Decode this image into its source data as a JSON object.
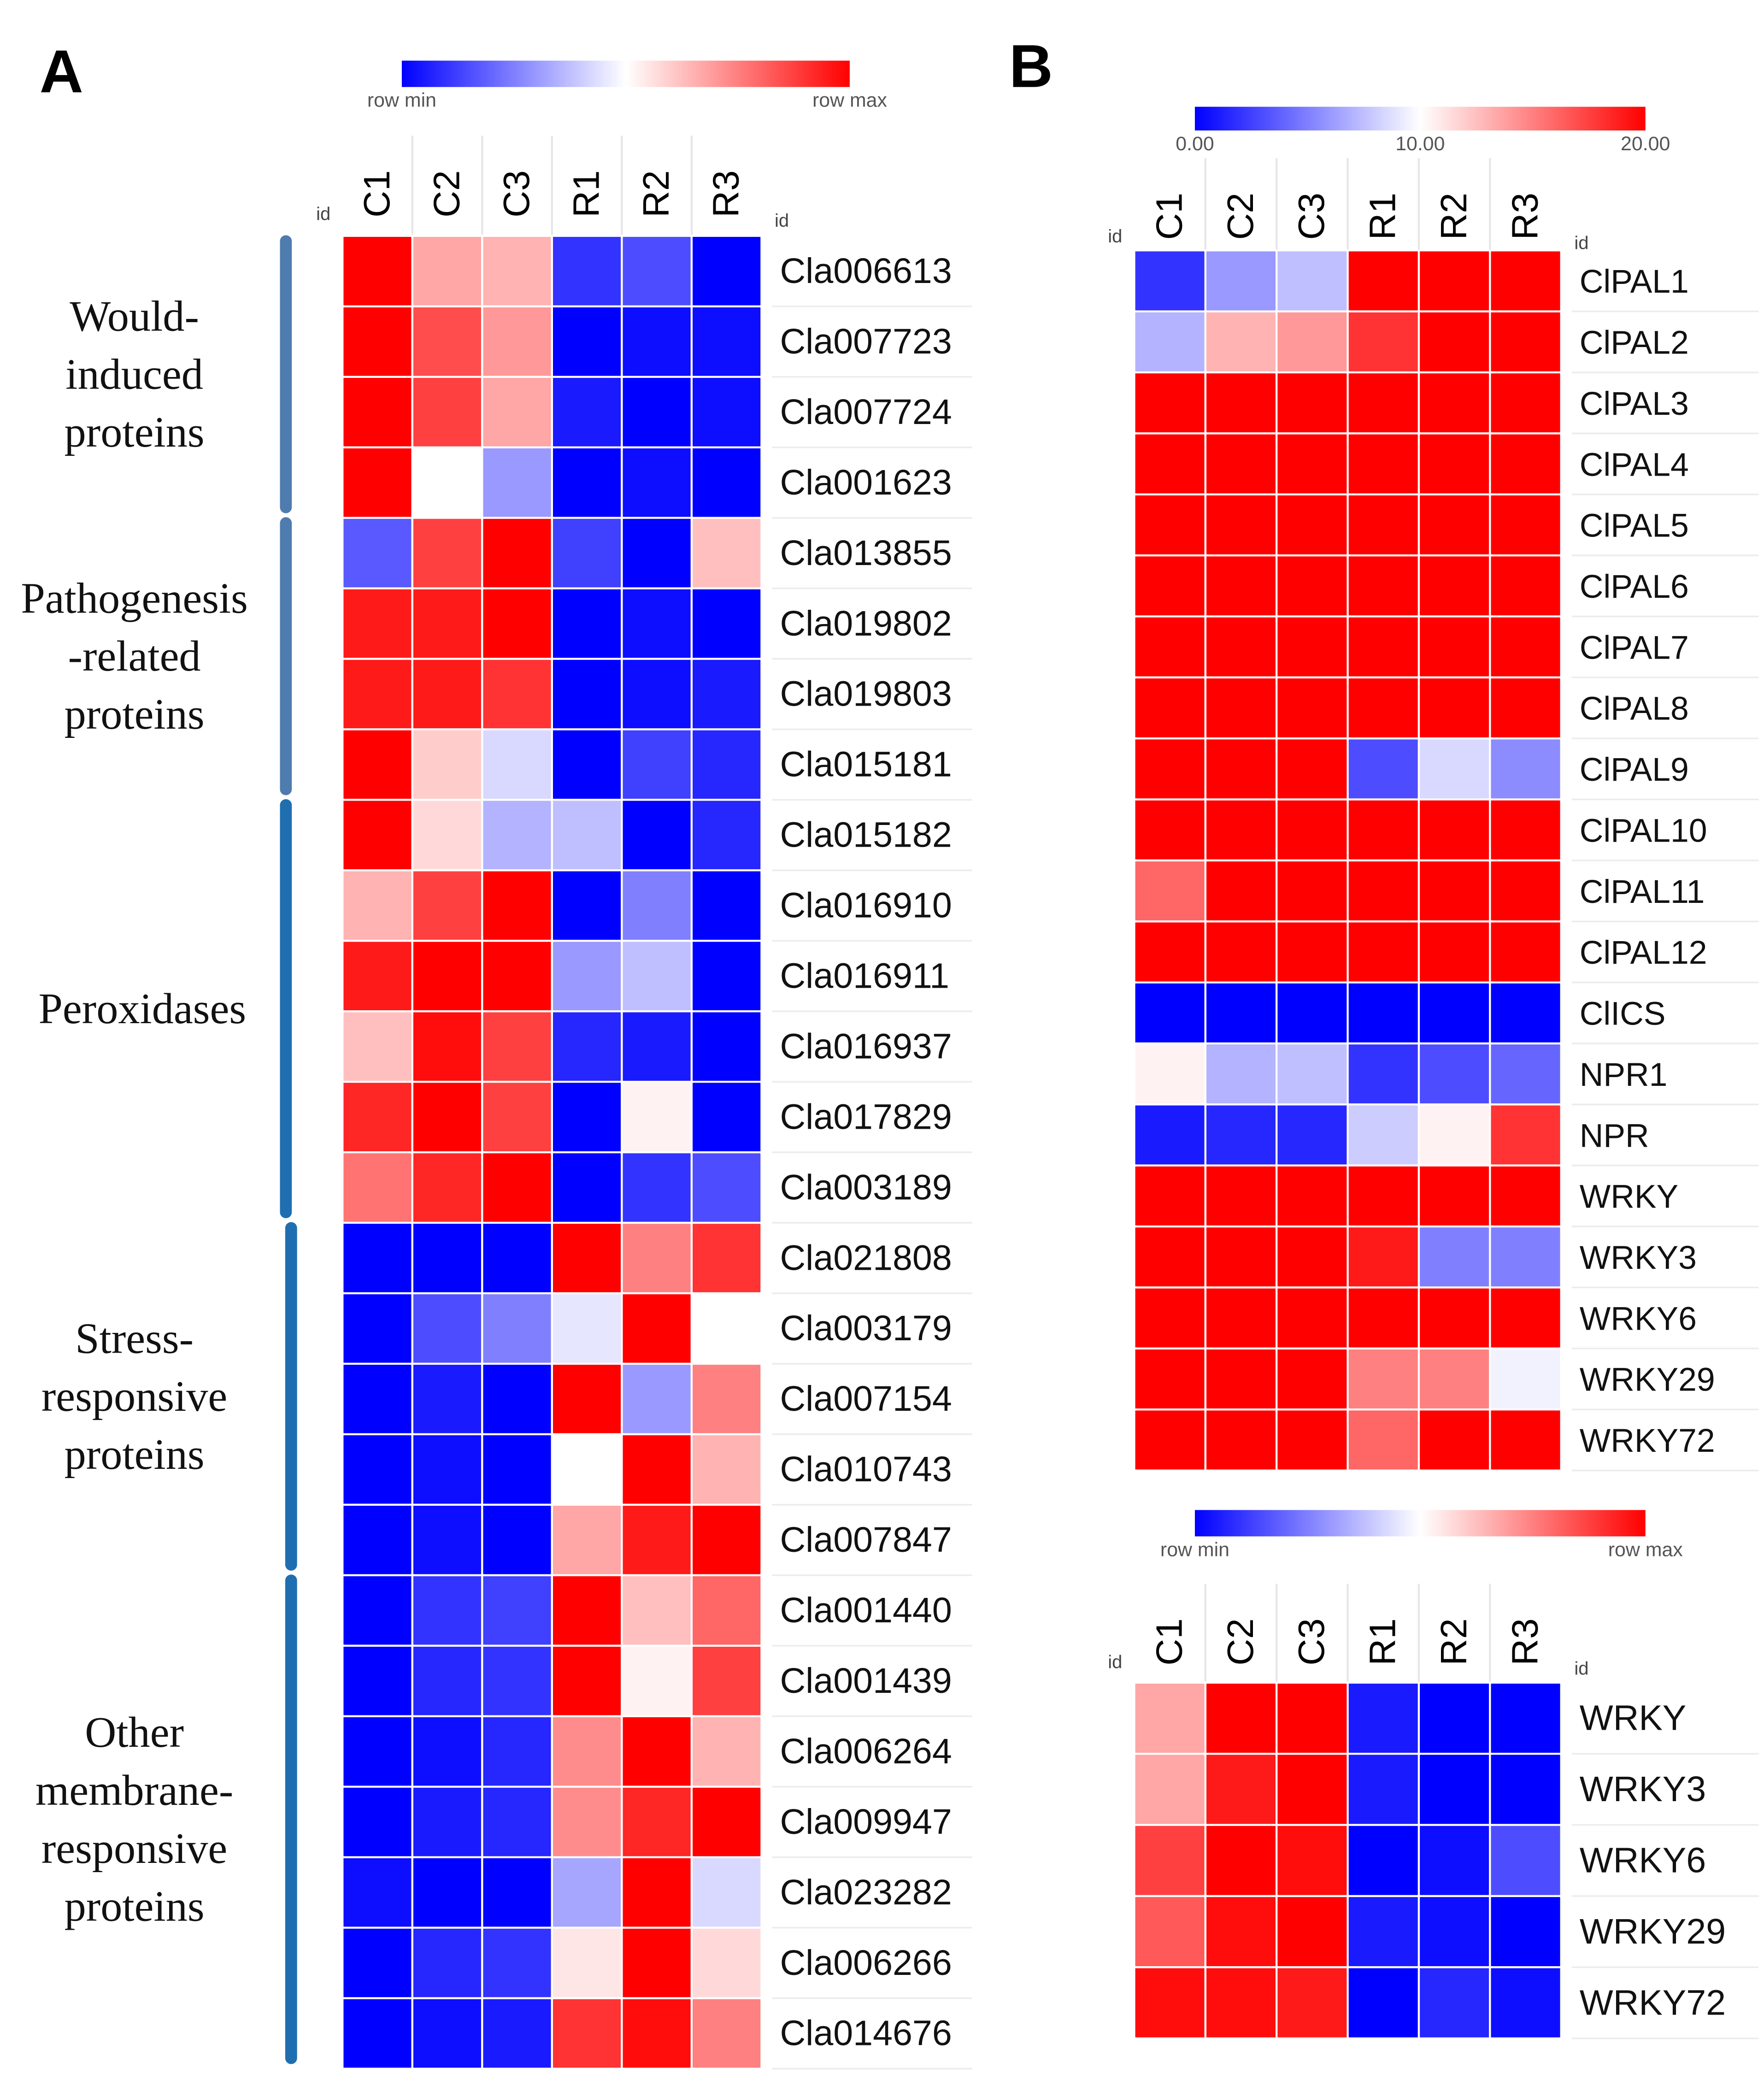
{
  "panels": [
    {
      "panel_label": "A",
      "chart_data": {
        "type": "heatmap",
        "title": "",
        "columns": [
          "C1",
          "C2",
          "C3",
          "R1",
          "R2",
          "R3"
        ],
        "left_id_label": "id",
        "right_id_label": "id",
        "colorbar": {
          "min_label": "row min",
          "max_label": "row max",
          "low_color": "#0000ff",
          "mid_color": "#ffffff",
          "high_color": "#ff0000"
        },
        "groups": [
          {
            "label_lines": [
              "Would-",
              "induced",
              "proteins"
            ],
            "row_start": 0,
            "row_end": 3
          },
          {
            "label_lines": [
              "Pathogenesis",
              "-related",
              "proteins"
            ],
            "row_start": 4,
            "row_end": 7
          },
          {
            "label_lines": [
              "Peroxidases"
            ],
            "row_start": 8,
            "row_end": 13
          },
          {
            "label_lines": [
              "Stress-",
              "responsive",
              "proteins"
            ],
            "row_start": 14,
            "row_end": 18
          },
          {
            "label_lines": [
              "Other",
              "membrane-",
              "responsive",
              "proteins"
            ],
            "row_start": 19,
            "row_end": 25
          }
        ],
        "rows": [
          {
            "id": "Cla006613",
            "values": [
              1.0,
              0.35,
              0.3,
              -0.8,
              -0.7,
              -1.0
            ]
          },
          {
            "id": "Cla007723",
            "values": [
              1.0,
              0.7,
              0.4,
              -1.0,
              -0.95,
              -0.95
            ]
          },
          {
            "id": "Cla007724",
            "values": [
              1.0,
              0.75,
              0.35,
              -0.9,
              -1.0,
              -0.95
            ]
          },
          {
            "id": "Cla001623",
            "values": [
              1.0,
              0.0,
              -0.4,
              -1.0,
              -0.95,
              -1.0
            ]
          },
          {
            "id": "Cla013855",
            "values": [
              -0.65,
              0.75,
              1.0,
              -0.75,
              -1.0,
              0.25
            ]
          },
          {
            "id": "Cla019802",
            "values": [
              0.9,
              0.9,
              1.0,
              -1.0,
              -0.95,
              -1.0
            ]
          },
          {
            "id": "Cla019803",
            "values": [
              0.9,
              0.9,
              0.8,
              -1.0,
              -0.95,
              -0.9
            ]
          },
          {
            "id": "Cla015181",
            "values": [
              1.0,
              0.2,
              -0.15,
              -1.0,
              -0.75,
              -0.85
            ]
          },
          {
            "id": "Cla015182",
            "values": [
              1.0,
              0.15,
              -0.3,
              -0.25,
              -1.0,
              -0.85
            ]
          },
          {
            "id": "Cla016910",
            "values": [
              0.3,
              0.75,
              1.0,
              -1.0,
              -0.5,
              -1.0
            ]
          },
          {
            "id": "Cla016911",
            "values": [
              0.9,
              1.0,
              1.0,
              -0.4,
              -0.25,
              -1.0
            ]
          },
          {
            "id": "Cla016937",
            "values": [
              0.25,
              0.95,
              0.75,
              -0.85,
              -0.9,
              -1.0
            ]
          },
          {
            "id": "Cla017829",
            "values": [
              0.85,
              1.0,
              0.75,
              -1.0,
              0.05,
              -1.0
            ]
          },
          {
            "id": "Cla003189",
            "values": [
              0.55,
              0.85,
              1.0,
              -1.0,
              -0.8,
              -0.7
            ]
          },
          {
            "id": "Cla021808",
            "values": [
              -1.0,
              -1.0,
              -1.0,
              1.0,
              0.5,
              0.8
            ]
          },
          {
            "id": "Cla003179",
            "values": [
              -1.0,
              -0.7,
              -0.5,
              -0.1,
              1.0,
              0.0
            ]
          },
          {
            "id": "Cla007154",
            "values": [
              -1.0,
              -0.9,
              -1.0,
              1.0,
              -0.4,
              0.5
            ]
          },
          {
            "id": "Cla010743",
            "values": [
              -1.0,
              -0.95,
              -1.0,
              0.0,
              1.0,
              0.3
            ]
          },
          {
            "id": "Cla007847",
            "values": [
              -1.0,
              -0.95,
              -1.0,
              0.35,
              0.9,
              1.0
            ]
          },
          {
            "id": "Cla001440",
            "values": [
              -1.0,
              -0.8,
              -0.75,
              1.0,
              0.25,
              0.6
            ]
          },
          {
            "id": "Cla001439",
            "values": [
              -1.0,
              -0.85,
              -0.8,
              1.0,
              0.05,
              0.75
            ]
          },
          {
            "id": "Cla006264",
            "values": [
              -1.0,
              -0.95,
              -0.85,
              0.45,
              1.0,
              0.3
            ]
          },
          {
            "id": "Cla009947",
            "values": [
              -1.0,
              -0.9,
              -0.85,
              0.45,
              0.85,
              1.0
            ]
          },
          {
            "id": "Cla023282",
            "values": [
              -0.95,
              -1.0,
              -1.0,
              -0.35,
              1.0,
              -0.15
            ]
          },
          {
            "id": "Cla006266",
            "values": [
              -1.0,
              -0.85,
              -0.8,
              0.1,
              1.0,
              0.15
            ]
          },
          {
            "id": "Cla014676",
            "values": [
              -1.0,
              -0.95,
              -0.9,
              0.8,
              0.95,
              0.5
            ]
          }
        ]
      }
    },
    {
      "panel_label": "B",
      "chart_data": [
        {
          "type": "heatmap",
          "title": "",
          "columns": [
            "C1",
            "C2",
            "C3",
            "R1",
            "R2",
            "R3"
          ],
          "left_id_label": "id",
          "right_id_label": "id",
          "colorbar": {
            "min_label": "0.00",
            "mid_label": "10.00",
            "max_label": "20.00",
            "low_color": "#0000ff",
            "mid_color": "#ffffff",
            "high_color": "#ff0000"
          },
          "vmin": 0,
          "vmax": 20,
          "rows": [
            {
              "id": "ClPAL1",
              "values": [
                2,
                6,
                7.5,
                20,
                20,
                20
              ]
            },
            {
              "id": "ClPAL2",
              "values": [
                7,
                13,
                14,
                18,
                20,
                20
              ]
            },
            {
              "id": "ClPAL3",
              "values": [
                20,
                20,
                20,
                20,
                20,
                20
              ]
            },
            {
              "id": "ClPAL4",
              "values": [
                20,
                20,
                20,
                20,
                20,
                20
              ]
            },
            {
              "id": "ClPAL5",
              "values": [
                20,
                20,
                20,
                20,
                20,
                20
              ]
            },
            {
              "id": "ClPAL6",
              "values": [
                20,
                20,
                20,
                20,
                20,
                20
              ]
            },
            {
              "id": "ClPAL7",
              "values": [
                20,
                20,
                20,
                20,
                20,
                20
              ]
            },
            {
              "id": "ClPAL8",
              "values": [
                20,
                20,
                20,
                20,
                20,
                20
              ]
            },
            {
              "id": "ClPAL9",
              "values": [
                20,
                20,
                20,
                3,
                8.5,
                5.5
              ]
            },
            {
              "id": "ClPAL10",
              "values": [
                20,
                20,
                20,
                20,
                20,
                20
              ]
            },
            {
              "id": "ClPAL11",
              "values": [
                16,
                20,
                20,
                20,
                20,
                20
              ]
            },
            {
              "id": "ClPAL12",
              "values": [
                20,
                20,
                20,
                20,
                20,
                20
              ]
            },
            {
              "id": "ClICS",
              "values": [
                0,
                0,
                0,
                0,
                0,
                0
              ]
            },
            {
              "id": "NPR1",
              "values": [
                10.5,
                7,
                7.5,
                2,
                3,
                4
              ]
            },
            {
              "id": "NPR",
              "values": [
                1,
                1.5,
                1.5,
                8,
                10.5,
                18
              ]
            },
            {
              "id": "WRKY",
              "values": [
                20,
                20,
                20,
                20,
                20,
                20
              ]
            },
            {
              "id": "WRKY3",
              "values": [
                20,
                20,
                20,
                19,
                5,
                5
              ]
            },
            {
              "id": "WRKY6",
              "values": [
                20,
                20,
                20,
                20,
                20,
                20
              ]
            },
            {
              "id": "WRKY29",
              "values": [
                20,
                20,
                20,
                15,
                15,
                9.5
              ]
            },
            {
              "id": "WRKY72",
              "values": [
                20,
                20,
                20,
                16,
                20,
                20
              ]
            }
          ]
        },
        {
          "type": "heatmap",
          "title": "",
          "columns": [
            "C1",
            "C2",
            "C3",
            "R1",
            "R2",
            "R3"
          ],
          "left_id_label": "id",
          "right_id_label": "id",
          "colorbar": {
            "min_label": "row min",
            "max_label": "row max",
            "low_color": "#0000ff",
            "mid_color": "#ffffff",
            "high_color": "#ff0000"
          },
          "rows": [
            {
              "id": "WRKY",
              "values": [
                0.35,
                1.0,
                1.0,
                -0.9,
                -1.0,
                -1.0
              ]
            },
            {
              "id": "WRKY3",
              "values": [
                0.35,
                0.9,
                1.0,
                -0.9,
                -1.0,
                -1.0
              ]
            },
            {
              "id": "WRKY6",
              "values": [
                0.75,
                1.0,
                0.95,
                -1.0,
                -0.95,
                -0.7
              ]
            },
            {
              "id": "WRKY29",
              "values": [
                0.65,
                0.95,
                1.0,
                -0.9,
                -0.95,
                -1.0
              ]
            },
            {
              "id": "WRKY72",
              "values": [
                0.95,
                0.95,
                0.9,
                -1.0,
                -0.85,
                -0.95
              ]
            }
          ]
        }
      ]
    }
  ]
}
